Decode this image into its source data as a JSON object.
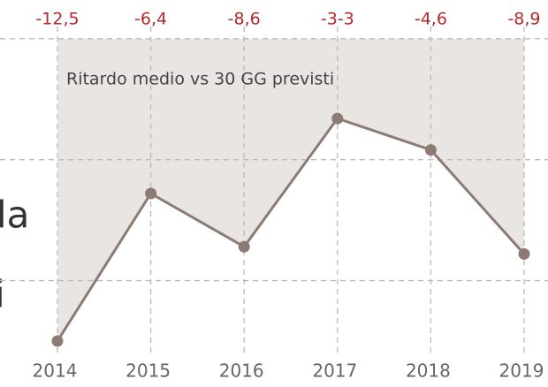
{
  "chart_data": {
    "type": "line",
    "annotation": "Ritardo medio vs 30 GG previsti",
    "background_text": [
      "la",
      "i"
    ],
    "categories": [
      "2014",
      "2015",
      "2016",
      "2017",
      "2018",
      "2019"
    ],
    "series": [
      {
        "color": "#8c7b75",
        "fill": "#e9e5e2",
        "values": [
          -12.5,
          -6.4,
          -8.6,
          -3.3,
          -4.6,
          -8.9
        ],
        "value_labels": [
          "-12,5",
          "-6,4",
          "-8,6",
          "-3-3",
          "-4,6",
          "-8,9"
        ]
      }
    ],
    "ylim": [
      -14.4,
      1.6
    ],
    "yticks": [
      -10,
      -5,
      0
    ],
    "grid": true
  }
}
